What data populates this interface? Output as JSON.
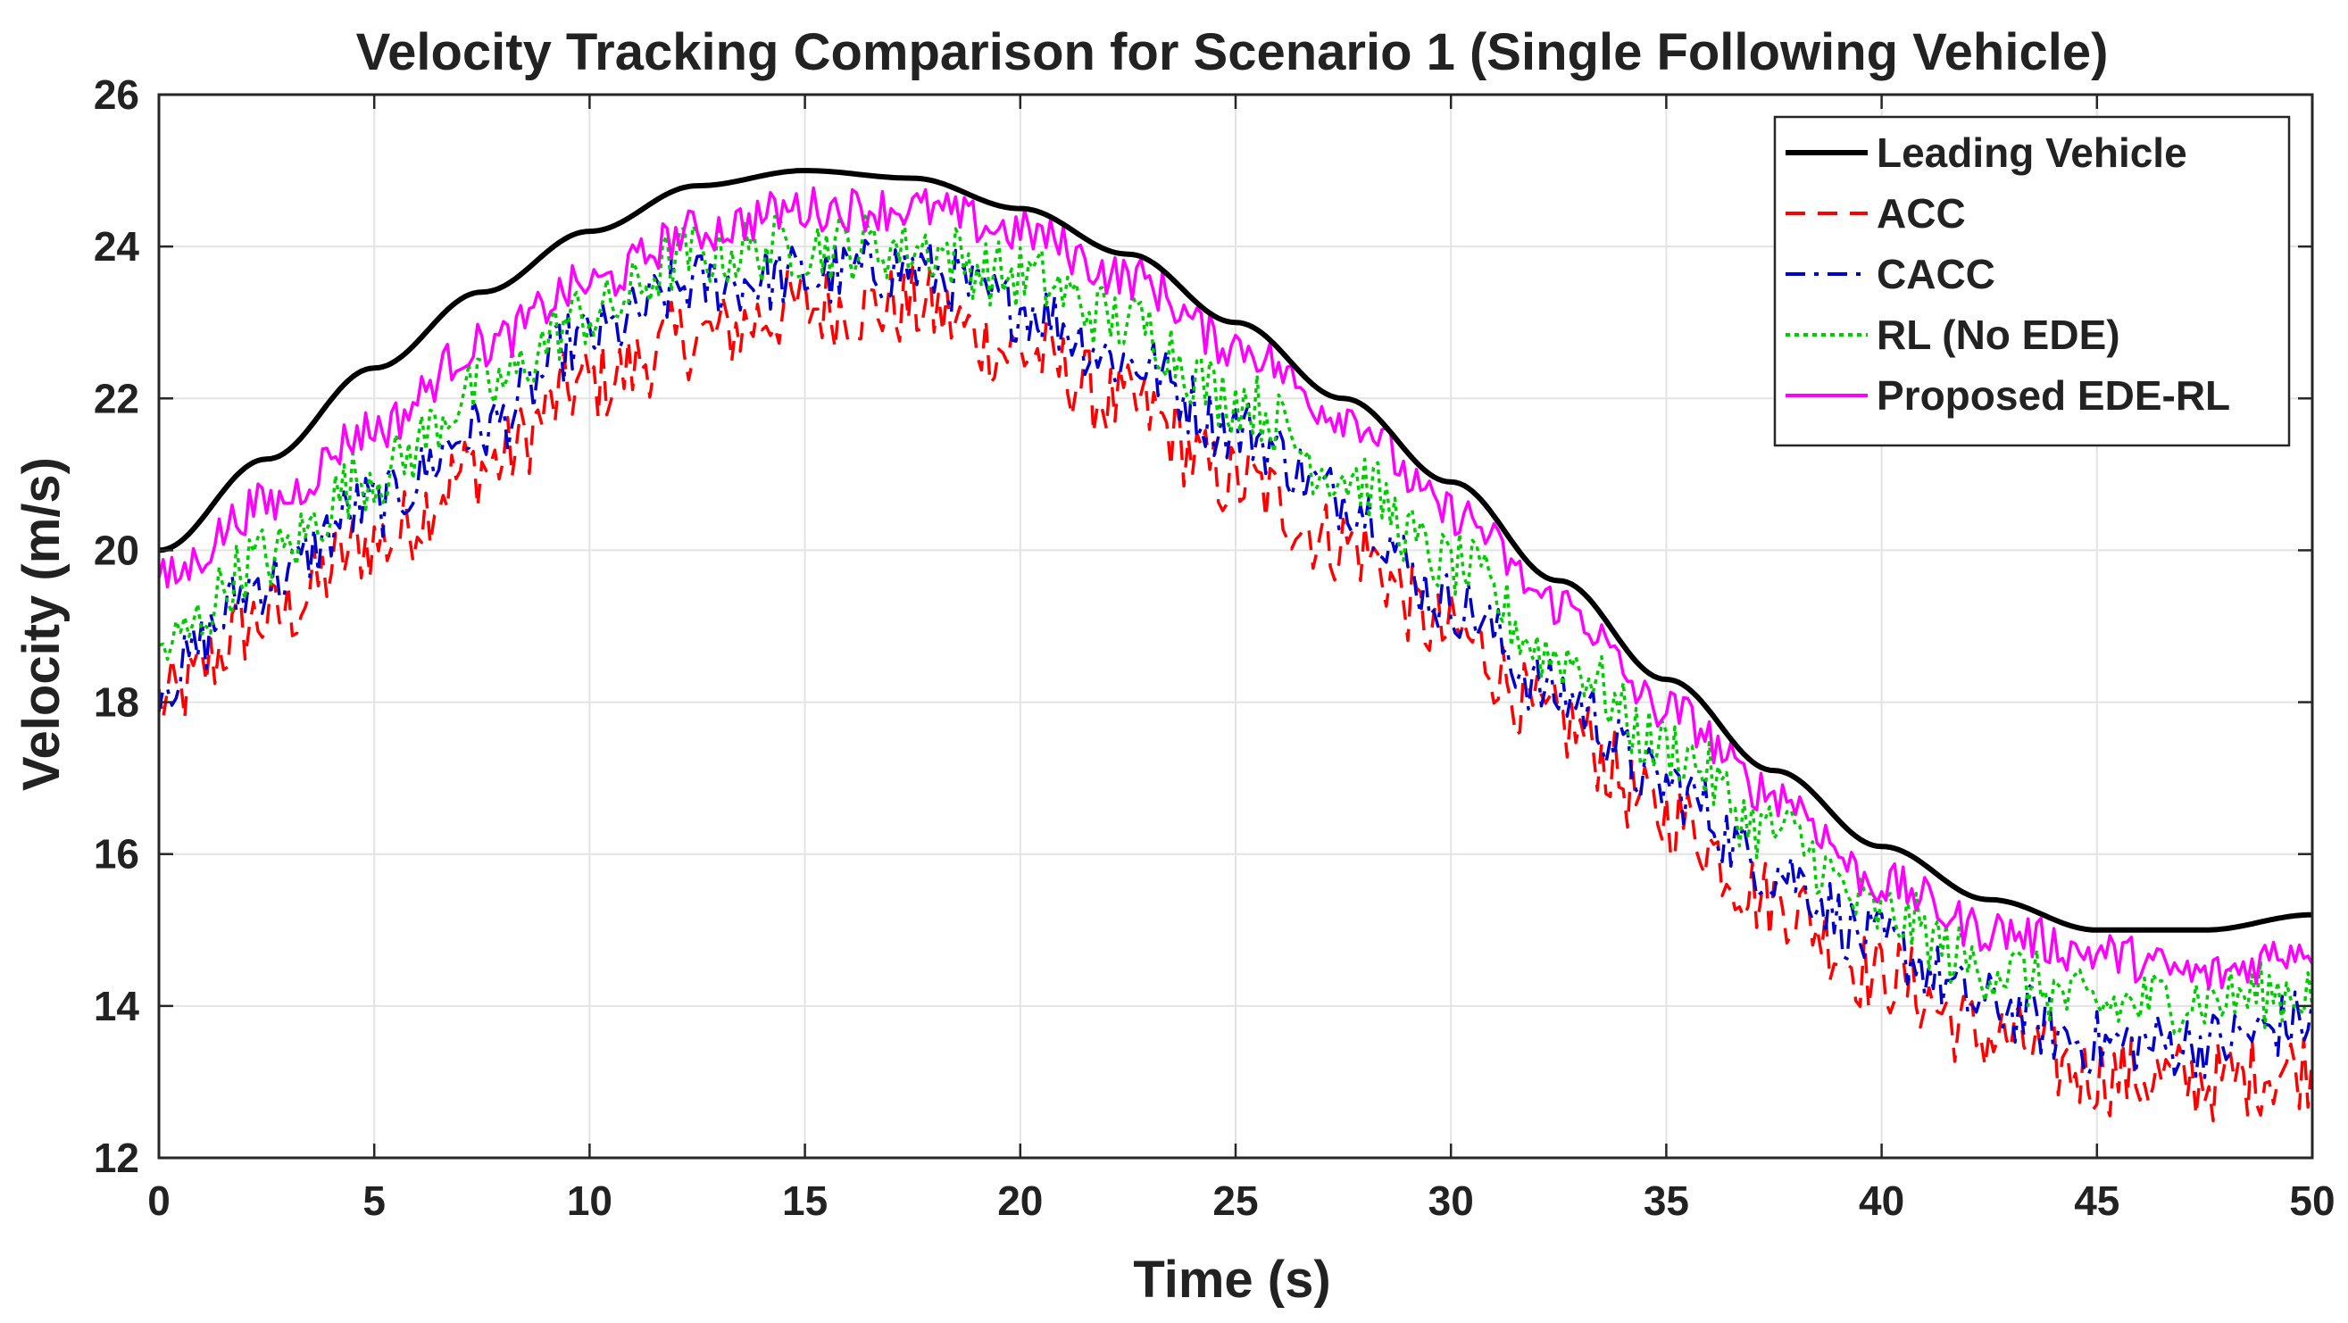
{
  "chart_data": {
    "type": "line",
    "title": "Velocity Tracking Comparison for Scenario 1 (Single Following Vehicle)",
    "xlabel": "Time (s)",
    "ylabel": "Velocity (m/s)",
    "xlim": [
      0,
      50
    ],
    "ylim": [
      12,
      26
    ],
    "xticks": [
      "0",
      "5",
      "10",
      "15",
      "20",
      "25",
      "30",
      "35",
      "40",
      "45",
      "50"
    ],
    "yticks": [
      "12",
      "14",
      "16",
      "18",
      "20",
      "22",
      "24",
      "26"
    ],
    "grid": true,
    "legend_position": "top-right",
    "x": [
      0,
      2.5,
      5,
      7.5,
      10,
      12.5,
      15,
      17.5,
      20,
      22.5,
      25,
      27.5,
      30,
      32.5,
      35,
      37.5,
      40,
      42.5,
      45,
      47.5,
      50
    ],
    "series": [
      {
        "name": "Leading Vehicle",
        "color": "#000000",
        "style": "solid",
        "values": [
          20.0,
          21.2,
          22.4,
          23.4,
          24.2,
          24.8,
          25.0,
          24.9,
          24.5,
          23.9,
          23.0,
          22.0,
          20.9,
          19.6,
          18.3,
          17.1,
          16.1,
          15.4,
          15.0,
          15.0,
          15.2
        ]
      },
      {
        "name": "ACC",
        "color": "#ff0000",
        "style": "dashed",
        "values": [
          18.0,
          19.1,
          20.1,
          21.1,
          22.2,
          22.8,
          23.2,
          23.2,
          22.6,
          21.9,
          20.9,
          20.1,
          18.9,
          17.7,
          16.5,
          15.4,
          14.4,
          13.6,
          13.1,
          13.0,
          13.2
        ]
      },
      {
        "name": "CACC",
        "color": "#0000cc",
        "style": "dashdot",
        "values": [
          18.3,
          19.6,
          20.6,
          21.6,
          22.8,
          23.5,
          23.6,
          23.7,
          23.2,
          22.5,
          21.6,
          20.7,
          19.3,
          18.1,
          16.9,
          15.8,
          14.8,
          14.0,
          13.5,
          13.5,
          13.8
        ]
      },
      {
        "name": "RL (No EDE)",
        "color": "#00cc00",
        "style": "dotted",
        "values": [
          18.7,
          19.9,
          21.0,
          22.1,
          23.1,
          23.9,
          24.0,
          24.0,
          23.6,
          23.0,
          22.0,
          21.0,
          19.8,
          18.6,
          17.4,
          16.3,
          15.2,
          14.5,
          14.0,
          14.1,
          14.2
        ]
      },
      {
        "name": "Proposed EDE-RL",
        "color": "#ff00ff",
        "style": "solid",
        "values": [
          19.6,
          20.6,
          21.6,
          22.7,
          23.5,
          24.2,
          24.5,
          24.5,
          24.2,
          23.6,
          22.7,
          21.8,
          20.5,
          19.3,
          17.9,
          16.8,
          15.6,
          15.0,
          14.7,
          14.4,
          14.8
        ]
      }
    ]
  }
}
